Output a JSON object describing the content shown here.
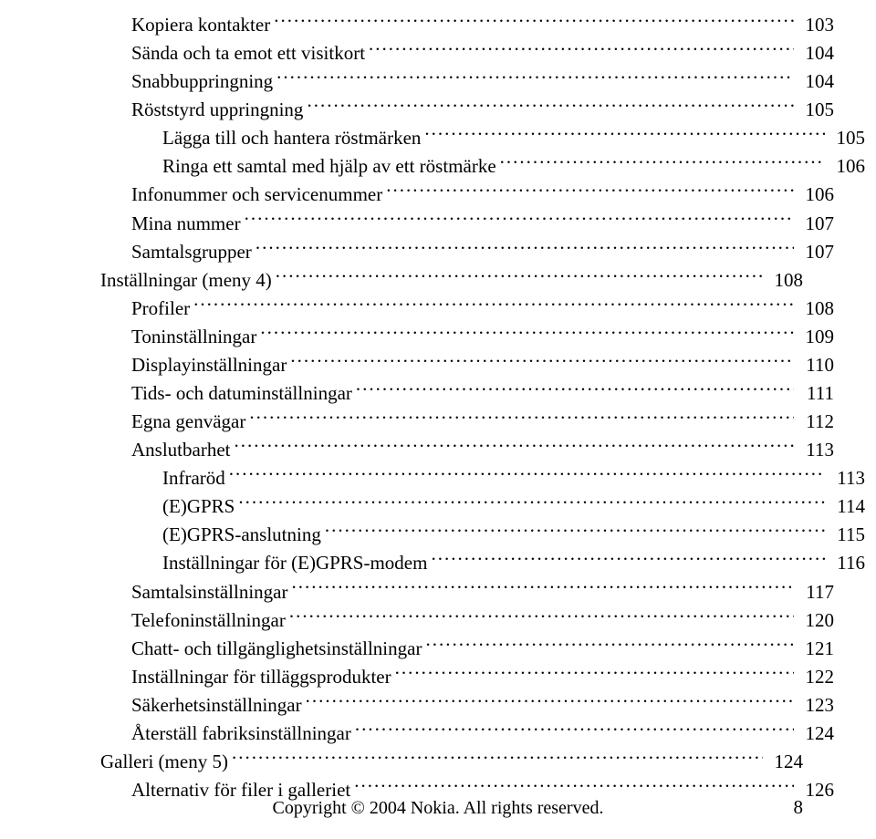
{
  "toc": [
    {
      "title": "Kopiera kontakter",
      "page": "103",
      "indent": 1
    },
    {
      "title": "Sända och ta emot ett visitkort",
      "page": "104",
      "indent": 1
    },
    {
      "title": "Snabbuppringning",
      "page": "104",
      "indent": 1
    },
    {
      "title": "Röststyrd uppringning",
      "page": "105",
      "indent": 1
    },
    {
      "title": "Lägga till och hantera röstmärken",
      "page": "105",
      "indent": 2
    },
    {
      "title": "Ringa ett samtal med hjälp av ett röstmärke",
      "page": "106",
      "indent": 2
    },
    {
      "title": "Infonummer och servicenummer",
      "page": "106",
      "indent": 1
    },
    {
      "title": "Mina nummer",
      "page": "107",
      "indent": 1
    },
    {
      "title": "Samtalsgrupper",
      "page": "107",
      "indent": 1
    },
    {
      "title": "Inställningar (meny 4)",
      "page": "108",
      "indent": 0
    },
    {
      "title": "Profiler",
      "page": "108",
      "indent": 1
    },
    {
      "title": "Toninställningar",
      "page": "109",
      "indent": 1
    },
    {
      "title": "Displayinställningar",
      "page": "110",
      "indent": 1
    },
    {
      "title": "Tids- och datuminställningar",
      "page": "111",
      "indent": 1
    },
    {
      "title": "Egna genvägar",
      "page": "112",
      "indent": 1
    },
    {
      "title": "Anslutbarhet",
      "page": "113",
      "indent": 1
    },
    {
      "title": "Infraröd",
      "page": "113",
      "indent": 2
    },
    {
      "title": "(E)GPRS",
      "page": "114",
      "indent": 2
    },
    {
      "title": "(E)GPRS-anslutning",
      "page": "115",
      "indent": 2
    },
    {
      "title": "Inställningar för (E)GPRS-modem",
      "page": "116",
      "indent": 2
    },
    {
      "title": "Samtalsinställningar",
      "page": "117",
      "indent": 1
    },
    {
      "title": "Telefoninställningar",
      "page": "120",
      "indent": 1
    },
    {
      "title": "Chatt- och tillgänglighetsinställningar",
      "page": "121",
      "indent": 1
    },
    {
      "title": "Inställningar för tilläggsprodukter",
      "page": "122",
      "indent": 1
    },
    {
      "title": "Säkerhetsinställningar",
      "page": "123",
      "indent": 1
    },
    {
      "title": "Återställ fabriksinställningar",
      "page": "124",
      "indent": 1
    },
    {
      "title": "Galleri (meny 5)",
      "page": "124",
      "indent": 0
    },
    {
      "title": "Alternativ för filer i galleriet",
      "page": "126",
      "indent": 1
    }
  ],
  "footer": {
    "copyright": "Copyright © 2004 Nokia. All rights reserved.",
    "pagenum": "8"
  }
}
